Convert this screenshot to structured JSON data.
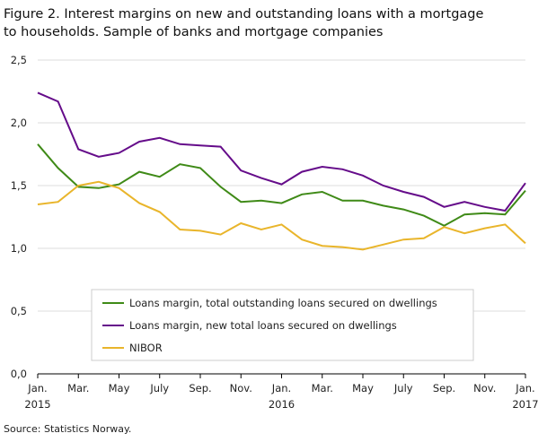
{
  "chart_data": {
    "type": "line",
    "title": "Figure 2. Interest margins on new and outstanding loans with a mortgage to households. Sample of banks and mortgage companies",
    "source": "Source: Statistics Norway.",
    "categories": [
      "Jan. 2015",
      null,
      "Mar.",
      null,
      "May",
      null,
      "July",
      null,
      "Sep.",
      null,
      "Nov.",
      null,
      "Jan. 2016",
      null,
      "Mar.",
      null,
      "May",
      null,
      "July",
      null,
      "Sep.",
      null,
      "Nov.",
      null,
      "Jan. 2017"
    ],
    "series": [
      {
        "name": "Loans margin, total outstanding loans secured on dwellings",
        "color": "#3f8a17",
        "values": [
          1.83,
          1.64,
          1.49,
          1.48,
          1.51,
          1.61,
          1.57,
          1.67,
          1.64,
          1.49,
          1.37,
          1.38,
          1.36,
          1.43,
          1.45,
          1.38,
          1.38,
          1.34,
          1.31,
          1.26,
          1.18,
          1.27,
          1.28,
          1.27,
          1.46
        ]
      },
      {
        "name": "Loans margin, new total loans secured on dwellings",
        "color": "#650c8a",
        "values": [
          2.24,
          2.17,
          1.79,
          1.73,
          1.76,
          1.85,
          1.88,
          1.83,
          1.82,
          1.81,
          1.62,
          1.56,
          1.51,
          1.61,
          1.65,
          1.63,
          1.58,
          1.5,
          1.45,
          1.41,
          1.33,
          1.37,
          1.33,
          1.3,
          1.52
        ]
      },
      {
        "name": "NIBOR",
        "color": "#e9b52b",
        "values": [
          1.35,
          1.37,
          1.5,
          1.53,
          1.48,
          1.36,
          1.29,
          1.15,
          1.14,
          1.11,
          1.2,
          1.15,
          1.19,
          1.07,
          1.02,
          1.01,
          0.99,
          1.03,
          1.07,
          1.08,
          1.17,
          1.12,
          1.16,
          1.19,
          1.04
        ]
      }
    ],
    "ylim": [
      0,
      2.5
    ],
    "yticks": [
      {
        "value": 0,
        "label": "0,0"
      },
      {
        "value": 0.5,
        "label": "0,5"
      },
      {
        "value": 1,
        "label": "1,0"
      },
      {
        "value": 1.5,
        "label": "1,5"
      },
      {
        "value": 2,
        "label": "2,0"
      },
      {
        "value": 2.5,
        "label": "2,5"
      }
    ],
    "grid": true
  }
}
